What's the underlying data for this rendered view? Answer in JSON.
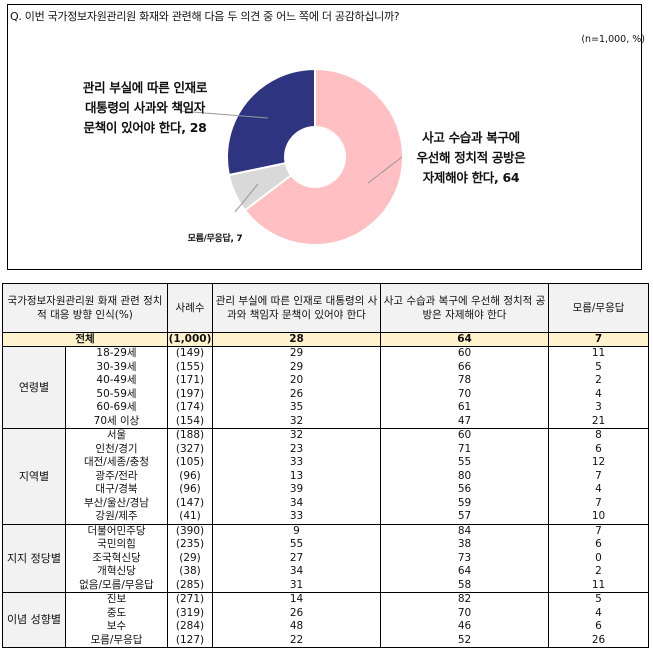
{
  "header": {
    "question": "Q. 이번 국가정보자원관리원 화재와 관련해 다음 두 의견 중 어느 쪽에 더 공감하십니까?",
    "note": "(n=1,000, %)"
  },
  "chart_data": {
    "type": "pie",
    "subtype": "donut",
    "title": "Q. 이번 국가정보자원관리원 화재와 관련해 다음 두 의견 중 어느 쪽에 더 공감하십니까?",
    "note": "(n=1,000, %)",
    "categories": [
      "사고 수습과 복구에 우선해 정치적 공방은 자제해야 한다",
      "모름/무응답",
      "관리 부실에 따른 인재로 대통령의 사과와 책임자 문책이 있어야 한다"
    ],
    "values": [
      64,
      7,
      28
    ],
    "colors": [
      "#ffbfc3",
      "#d9d9d9",
      "#2e3480"
    ],
    "data_labels": [
      "사고 수습과 복구에 우선해 정치적 공방은 자제해야 한다, 64",
      "모름/무응답, 7",
      "관리 부실에 따른 인재로 대통령의 사과와 책임자 문책이 있어야 한다, 28"
    ]
  },
  "chart_labels": {
    "blame_line1": "관리 부실에 따른 인재로",
    "blame_line2": "대통령의 사과와 책임자",
    "blame_line3": "문책이 있어야 한다, 28",
    "restraint_line1": "사고 수습과 복구에",
    "restraint_line2": "우선해 정치적 공방은",
    "restraint_line3": "자제해야 한다, 64",
    "dk": "모름/무응답, 7"
  },
  "table": {
    "headers": {
      "category": "국가정보자원관리원 화재 관련 정치적 대응 방향 인식(%)",
      "n": "사례수",
      "col1": "관리 부실에 따른 인재로 대통령의 사과와 책임자 문책이 있어야 한다",
      "col2": "사고 수습과 복구에 우선해 정치적 공방은 자제해야 한다",
      "col3": "모름/무응답"
    },
    "total": {
      "label": "전체",
      "n": "(1,000)",
      "v1": "28",
      "v2": "64",
      "v3": "7"
    },
    "groups": [
      {
        "name": "연령별",
        "rows": [
          {
            "label": "18-29세",
            "n": "(149)",
            "v1": "29",
            "v2": "60",
            "v3": "11"
          },
          {
            "label": "30-39세",
            "n": "(155)",
            "v1": "29",
            "v2": "66",
            "v3": "5"
          },
          {
            "label": "40-49세",
            "n": "(171)",
            "v1": "20",
            "v2": "78",
            "v3": "2"
          },
          {
            "label": "50-59세",
            "n": "(197)",
            "v1": "26",
            "v2": "70",
            "v3": "4"
          },
          {
            "label": "60-69세",
            "n": "(174)",
            "v1": "35",
            "v2": "61",
            "v3": "3"
          },
          {
            "label": "70세 이상",
            "n": "(154)",
            "v1": "32",
            "v2": "47",
            "v3": "21"
          }
        ]
      },
      {
        "name": "지역별",
        "rows": [
          {
            "label": "서울",
            "n": "(188)",
            "v1": "32",
            "v2": "60",
            "v3": "8"
          },
          {
            "label": "인천/경기",
            "n": "(327)",
            "v1": "23",
            "v2": "71",
            "v3": "6"
          },
          {
            "label": "대전/세종/충청",
            "n": "(105)",
            "v1": "33",
            "v2": "55",
            "v3": "12"
          },
          {
            "label": "광주/전라",
            "n": "(96)",
            "v1": "13",
            "v2": "80",
            "v3": "7"
          },
          {
            "label": "대구/경북",
            "n": "(96)",
            "v1": "39",
            "v2": "56",
            "v3": "4"
          },
          {
            "label": "부산/울산/경남",
            "n": "(147)",
            "v1": "34",
            "v2": "59",
            "v3": "7"
          },
          {
            "label": "강원/제주",
            "n": "(41)",
            "v1": "33",
            "v2": "57",
            "v3": "10"
          }
        ]
      },
      {
        "name": "지지 정당별",
        "rows": [
          {
            "label": "더불어민주당",
            "n": "(390)",
            "v1": "9",
            "v2": "84",
            "v3": "7"
          },
          {
            "label": "국민의힘",
            "n": "(235)",
            "v1": "55",
            "v2": "38",
            "v3": "6"
          },
          {
            "label": "조국혁신당",
            "n": "(29)",
            "v1": "27",
            "v2": "73",
            "v3": "0"
          },
          {
            "label": "개혁신당",
            "n": "(38)",
            "v1": "34",
            "v2": "64",
            "v3": "2"
          },
          {
            "label": "없음/모름/무응답",
            "n": "(285)",
            "v1": "31",
            "v2": "58",
            "v3": "11"
          }
        ]
      },
      {
        "name": "이념 성향별",
        "rows": [
          {
            "label": "진보",
            "n": "(271)",
            "v1": "14",
            "v2": "82",
            "v3": "5"
          },
          {
            "label": "중도",
            "n": "(319)",
            "v1": "26",
            "v2": "70",
            "v3": "4"
          },
          {
            "label": "보수",
            "n": "(284)",
            "v1": "48",
            "v2": "46",
            "v3": "6"
          },
          {
            "label": "모름/무응답",
            "n": "(127)",
            "v1": "22",
            "v2": "52",
            "v3": "26"
          }
        ]
      }
    ]
  }
}
